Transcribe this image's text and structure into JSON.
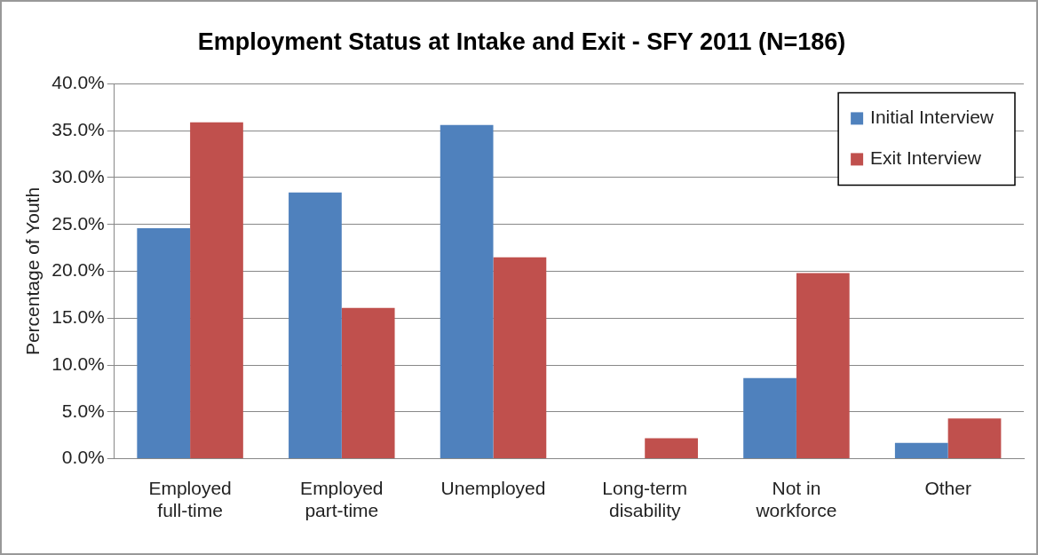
{
  "chart_data": {
    "type": "bar",
    "title": "Employment Status at Intake and Exit - SFY 2011 (N=186)",
    "ylabel": "Percentage of Youth",
    "categories": [
      "Employed full-time",
      "Employed part-time",
      "Unemployed",
      "Long-term disability",
      "Not in workforce",
      "Other"
    ],
    "series": [
      {
        "name": "Initial Interview",
        "color": "#4f81bd",
        "values": [
          24.6,
          28.4,
          35.6,
          0,
          8.6,
          1.7
        ]
      },
      {
        "name": "Exit Interview",
        "color": "#c0504d",
        "values": [
          35.9,
          16.1,
          21.5,
          2.2,
          19.8,
          4.3
        ]
      }
    ],
    "ylim": [
      0,
      40
    ],
    "yticks": [
      {
        "value": 0,
        "label": "0.0%"
      },
      {
        "value": 5,
        "label": "5.0%"
      },
      {
        "value": 10,
        "label": "10.0%"
      },
      {
        "value": 15,
        "label": "15.0%"
      },
      {
        "value": 20,
        "label": "20.0%"
      },
      {
        "value": 25,
        "label": "25.0%"
      },
      {
        "value": 30,
        "label": "30.0%"
      },
      {
        "value": 35,
        "label": "35.0%"
      },
      {
        "value": 40,
        "label": "40.0%"
      }
    ],
    "grid": "y",
    "legend": "top right"
  }
}
